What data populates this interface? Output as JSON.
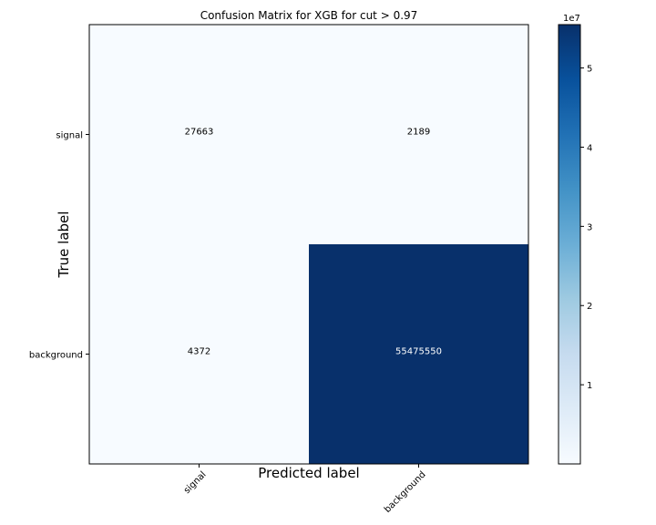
{
  "chart_data": {
    "type": "heatmap",
    "title": "Confusion Matrix for XGB for cut > 0.97",
    "xlabel": "Predicted label",
    "ylabel": "True label",
    "x_categories": [
      "signal",
      "background"
    ],
    "y_categories": [
      "signal",
      "background"
    ],
    "values": [
      [
        27663,
        2189
      ],
      [
        4372,
        55475550
      ]
    ],
    "colormap": "Blues",
    "colorbar": {
      "scale_label": "1e7",
      "ticks": [
        1,
        2,
        3,
        4,
        5
      ],
      "tick_labels": [
        "1",
        "2",
        "3",
        "4",
        "5"
      ],
      "multiplier": 10000000,
      "range": [
        2189,
        55475550
      ]
    }
  }
}
